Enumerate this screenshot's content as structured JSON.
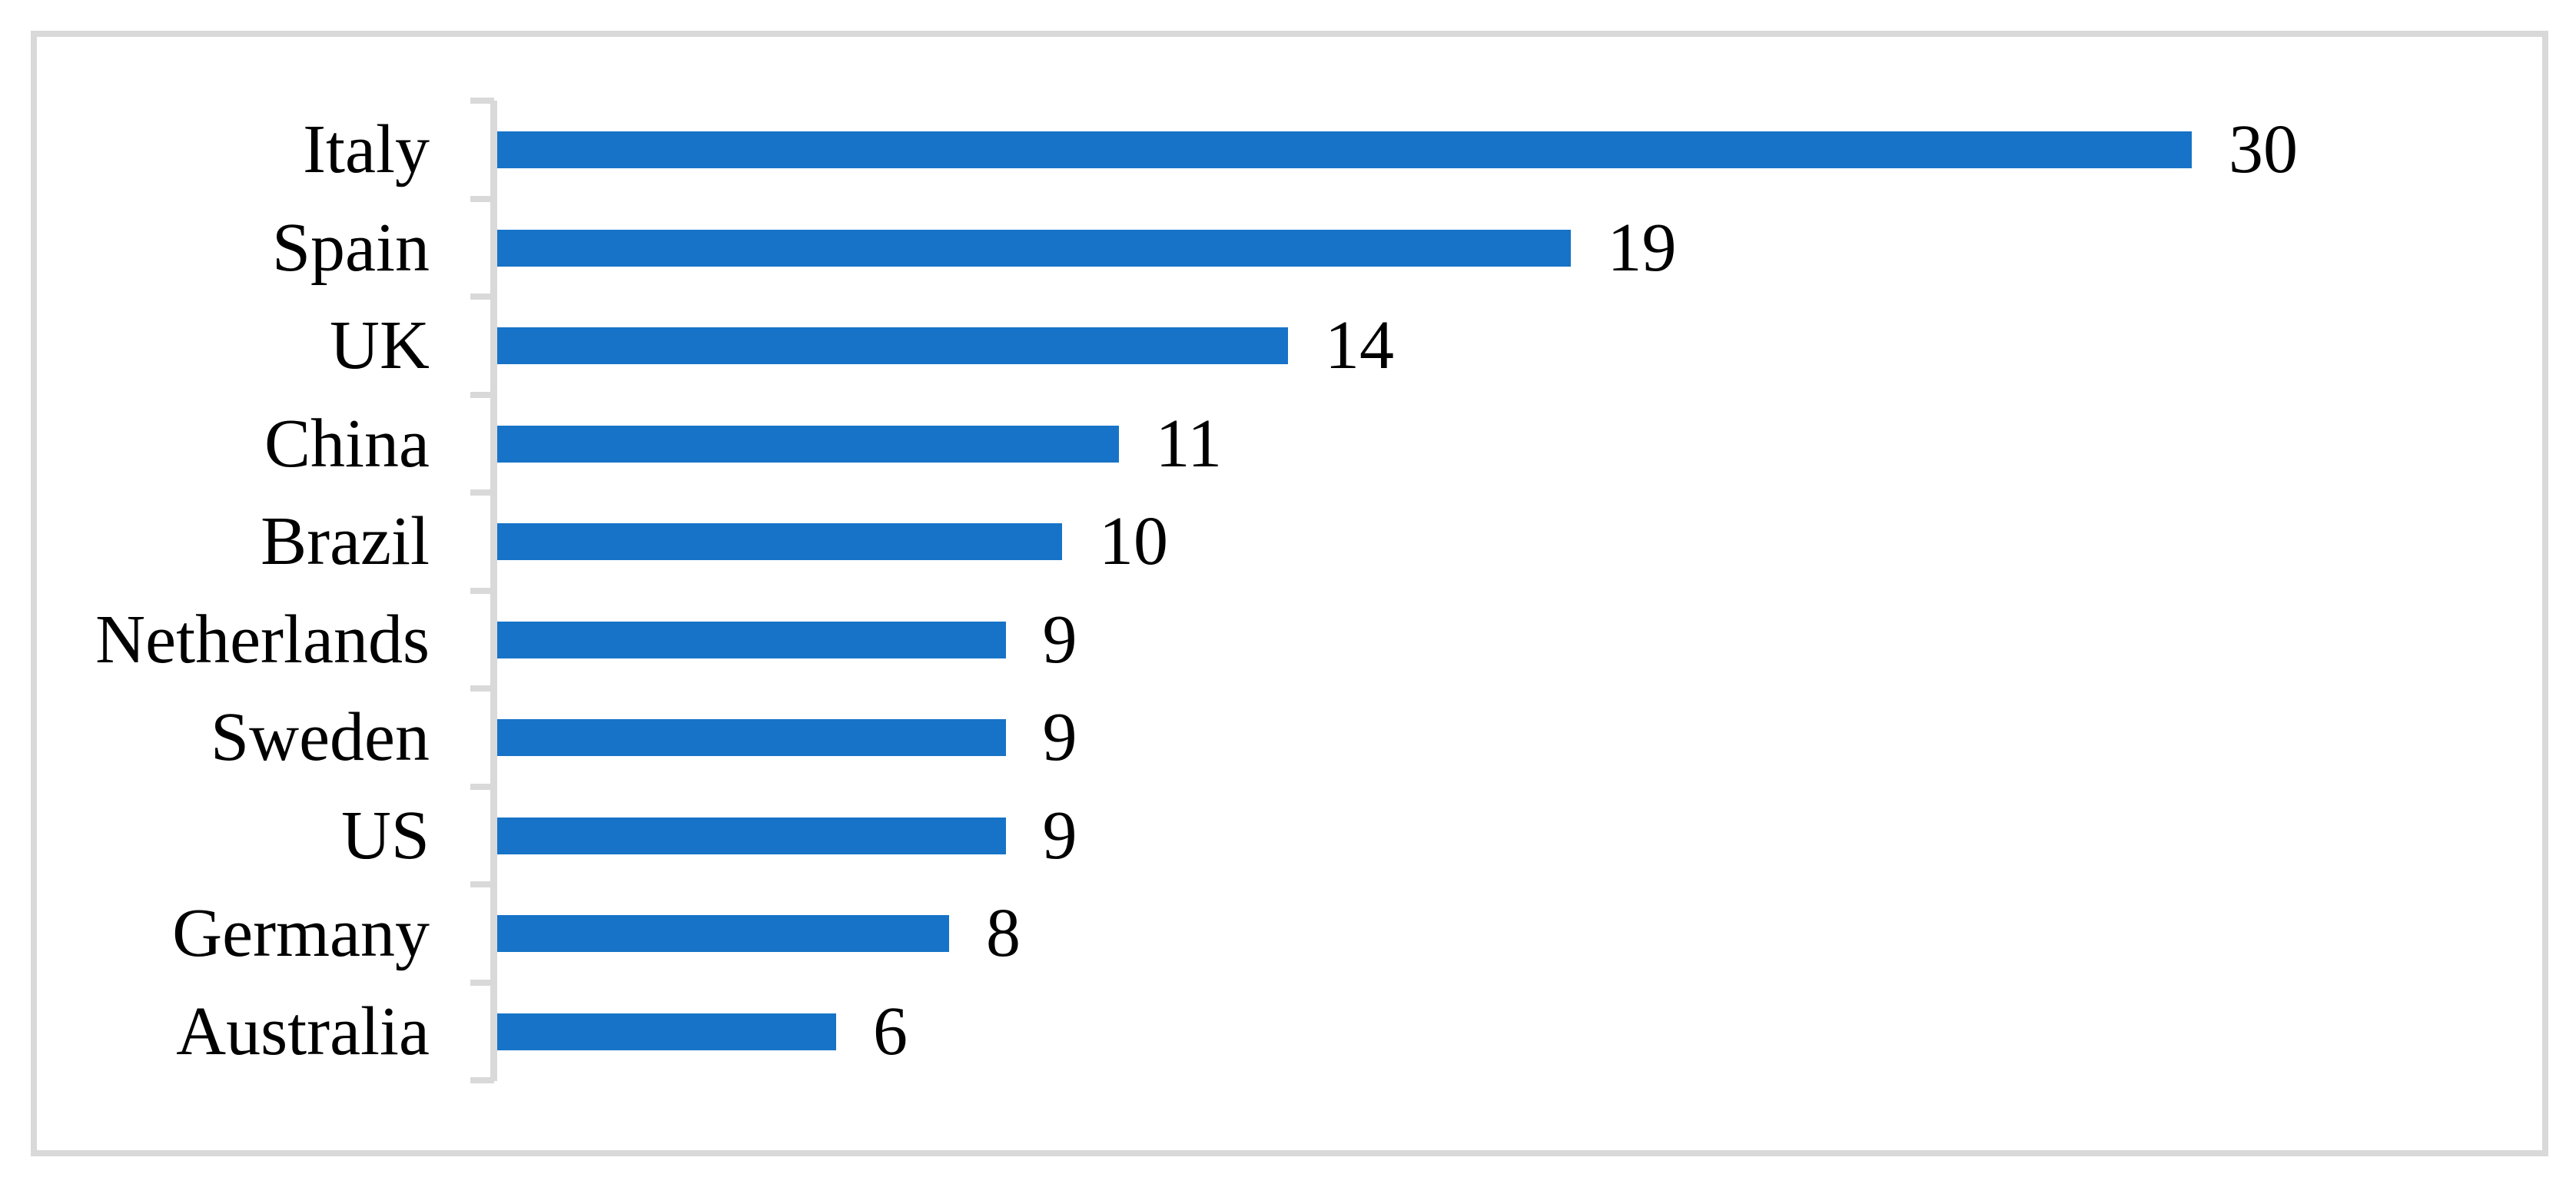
{
  "figure": {
    "background_color": "#FFFFFF",
    "border_color": "#D9D9D9",
    "title": ""
  },
  "chart_data": {
    "type": "bar",
    "orientation": "horizontal",
    "categories": [
      "Italy",
      "Spain",
      "UK",
      "China",
      "Brazil",
      "Netherlands",
      "Sweden",
      "US",
      "Germany",
      "Australia"
    ],
    "values": [
      30,
      19,
      14,
      11,
      10,
      9,
      9,
      9,
      8,
      6
    ],
    "data_labels": [
      "30",
      "19",
      "14",
      "11",
      "10",
      "9",
      "9",
      "9",
      "8",
      "6"
    ],
    "title": "",
    "xlabel": "",
    "ylabel": "",
    "xlim": [
      0,
      36
    ],
    "grid": false,
    "legend": false,
    "data_labels_shown": true,
    "bar_color": "#1773C7",
    "axis_color": "#D9D9D9",
    "label_color": "#000000"
  }
}
